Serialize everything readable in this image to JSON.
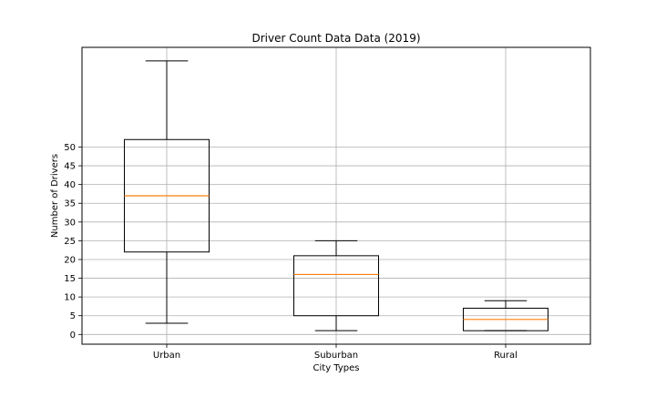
{
  "chart_data": {
    "type": "box",
    "title": "Driver Count Data Data (2019)",
    "xlabel": "City Types",
    "ylabel": "Number of Drivers",
    "categories": [
      "Urban",
      "Suburban",
      "Rural"
    ],
    "boxes": [
      {
        "category": "Urban",
        "whisker_low": 3,
        "q1": 22,
        "median": 37,
        "q3": 52,
        "whisker_high": 73
      },
      {
        "category": "Suburban",
        "whisker_low": 1,
        "q1": 5,
        "median": 16,
        "q3": 21,
        "whisker_high": 25
      },
      {
        "category": "Rural",
        "whisker_low": 1,
        "q1": 1,
        "median": 4,
        "q3": 7,
        "whisker_high": 9
      }
    ],
    "yticks": [
      0,
      5,
      10,
      15,
      20,
      25,
      30,
      35,
      40,
      45,
      50
    ],
    "ylim": [
      -2.6,
      76.6
    ],
    "grid": true,
    "colors": {
      "box": "#000000",
      "median": "#ff7f0e",
      "grid": "#b0b0b0"
    }
  }
}
